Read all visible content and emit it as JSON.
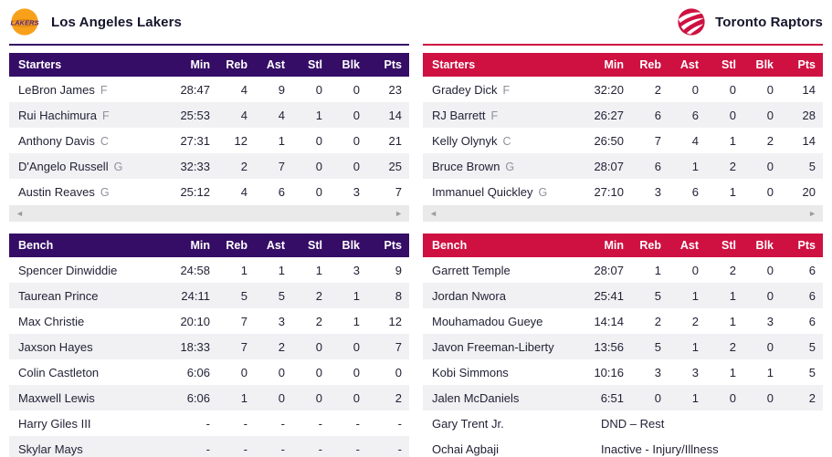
{
  "stat_columns": [
    "Min",
    "Reb",
    "Ast",
    "Stl",
    "Blk",
    "Pts"
  ],
  "scroll_strip": {
    "left_arrow": "◄",
    "right_arrow": "►"
  },
  "colors": {
    "lakers_accent": "#350d66",
    "raptors_accent": "#ce1141",
    "row_alt": "#f1f1f4",
    "scrollbar_bg": "#eaeaea"
  },
  "teams": [
    {
      "name": "Los Angeles Lakers",
      "accent": "#350d66",
      "logo_icon": "lakers-logo",
      "starters_label": "Starters",
      "bench_label": "Bench",
      "starters": [
        {
          "name": "LeBron James",
          "pos": "F",
          "stats": [
            "28:47",
            "4",
            "9",
            "0",
            "0",
            "23"
          ]
        },
        {
          "name": "Rui Hachimura",
          "pos": "F",
          "stats": [
            "25:53",
            "4",
            "4",
            "1",
            "0",
            "14"
          ]
        },
        {
          "name": "Anthony Davis",
          "pos": "C",
          "stats": [
            "27:31",
            "12",
            "1",
            "0",
            "0",
            "21"
          ]
        },
        {
          "name": "D'Angelo Russell",
          "pos": "G",
          "stats": [
            "32:33",
            "2",
            "7",
            "0",
            "0",
            "25"
          ]
        },
        {
          "name": "Austin Reaves",
          "pos": "G",
          "stats": [
            "25:12",
            "4",
            "6",
            "0",
            "3",
            "7"
          ]
        }
      ],
      "bench": [
        {
          "name": "Spencer Dinwiddie",
          "stats": [
            "24:58",
            "1",
            "1",
            "1",
            "3",
            "9"
          ]
        },
        {
          "name": "Taurean Prince",
          "stats": [
            "24:11",
            "5",
            "5",
            "2",
            "1",
            "8"
          ]
        },
        {
          "name": "Max Christie",
          "stats": [
            "20:10",
            "7",
            "3",
            "2",
            "1",
            "12"
          ]
        },
        {
          "name": "Jaxson Hayes",
          "stats": [
            "18:33",
            "7",
            "2",
            "0",
            "0",
            "7"
          ]
        },
        {
          "name": "Colin Castleton",
          "stats": [
            "6:06",
            "0",
            "0",
            "0",
            "0",
            "0"
          ]
        },
        {
          "name": "Maxwell Lewis",
          "stats": [
            "6:06",
            "1",
            "0",
            "0",
            "0",
            "2"
          ]
        },
        {
          "name": "Harry Giles III",
          "stats": [
            "-",
            "-",
            "-",
            "-",
            "-",
            "-"
          ]
        },
        {
          "name": "Skylar Mays",
          "stats": [
            "-",
            "-",
            "-",
            "-",
            "-",
            "-"
          ]
        }
      ]
    },
    {
      "name": "Toronto Raptors",
      "accent": "#ce1141",
      "logo_icon": "raptors-logo",
      "starters_label": "Starters",
      "bench_label": "Bench",
      "starters": [
        {
          "name": "Gradey Dick",
          "pos": "F",
          "stats": [
            "32:20",
            "2",
            "0",
            "0",
            "0",
            "14"
          ]
        },
        {
          "name": "RJ Barrett",
          "pos": "F",
          "stats": [
            "26:27",
            "6",
            "6",
            "0",
            "0",
            "28"
          ]
        },
        {
          "name": "Kelly Olynyk",
          "pos": "C",
          "stats": [
            "26:50",
            "7",
            "4",
            "1",
            "2",
            "14"
          ]
        },
        {
          "name": "Bruce Brown",
          "pos": "G",
          "stats": [
            "28:07",
            "6",
            "1",
            "2",
            "0",
            "5"
          ]
        },
        {
          "name": "Immanuel Quickley",
          "pos": "G",
          "stats": [
            "27:10",
            "3",
            "6",
            "1",
            "0",
            "20"
          ]
        }
      ],
      "bench": [
        {
          "name": "Garrett Temple",
          "stats": [
            "28:07",
            "1",
            "0",
            "2",
            "0",
            "6"
          ]
        },
        {
          "name": "Jordan Nwora",
          "stats": [
            "25:41",
            "5",
            "1",
            "1",
            "0",
            "6"
          ]
        },
        {
          "name": "Mouhamadou Gueye",
          "stats": [
            "14:14",
            "2",
            "2",
            "1",
            "3",
            "6"
          ]
        },
        {
          "name": "Javon Freeman-Liberty",
          "stats": [
            "13:56",
            "5",
            "1",
            "2",
            "0",
            "5"
          ]
        },
        {
          "name": "Kobi Simmons",
          "stats": [
            "10:16",
            "3",
            "3",
            "1",
            "1",
            "5"
          ]
        },
        {
          "name": "Jalen McDaniels",
          "stats": [
            "6:51",
            "0",
            "1",
            "0",
            "0",
            "2"
          ]
        },
        {
          "name": "Gary Trent Jr.",
          "status": "DND – Rest"
        },
        {
          "name": "Ochai Agbaji",
          "status": "Inactive - Injury/Illness"
        }
      ]
    }
  ]
}
